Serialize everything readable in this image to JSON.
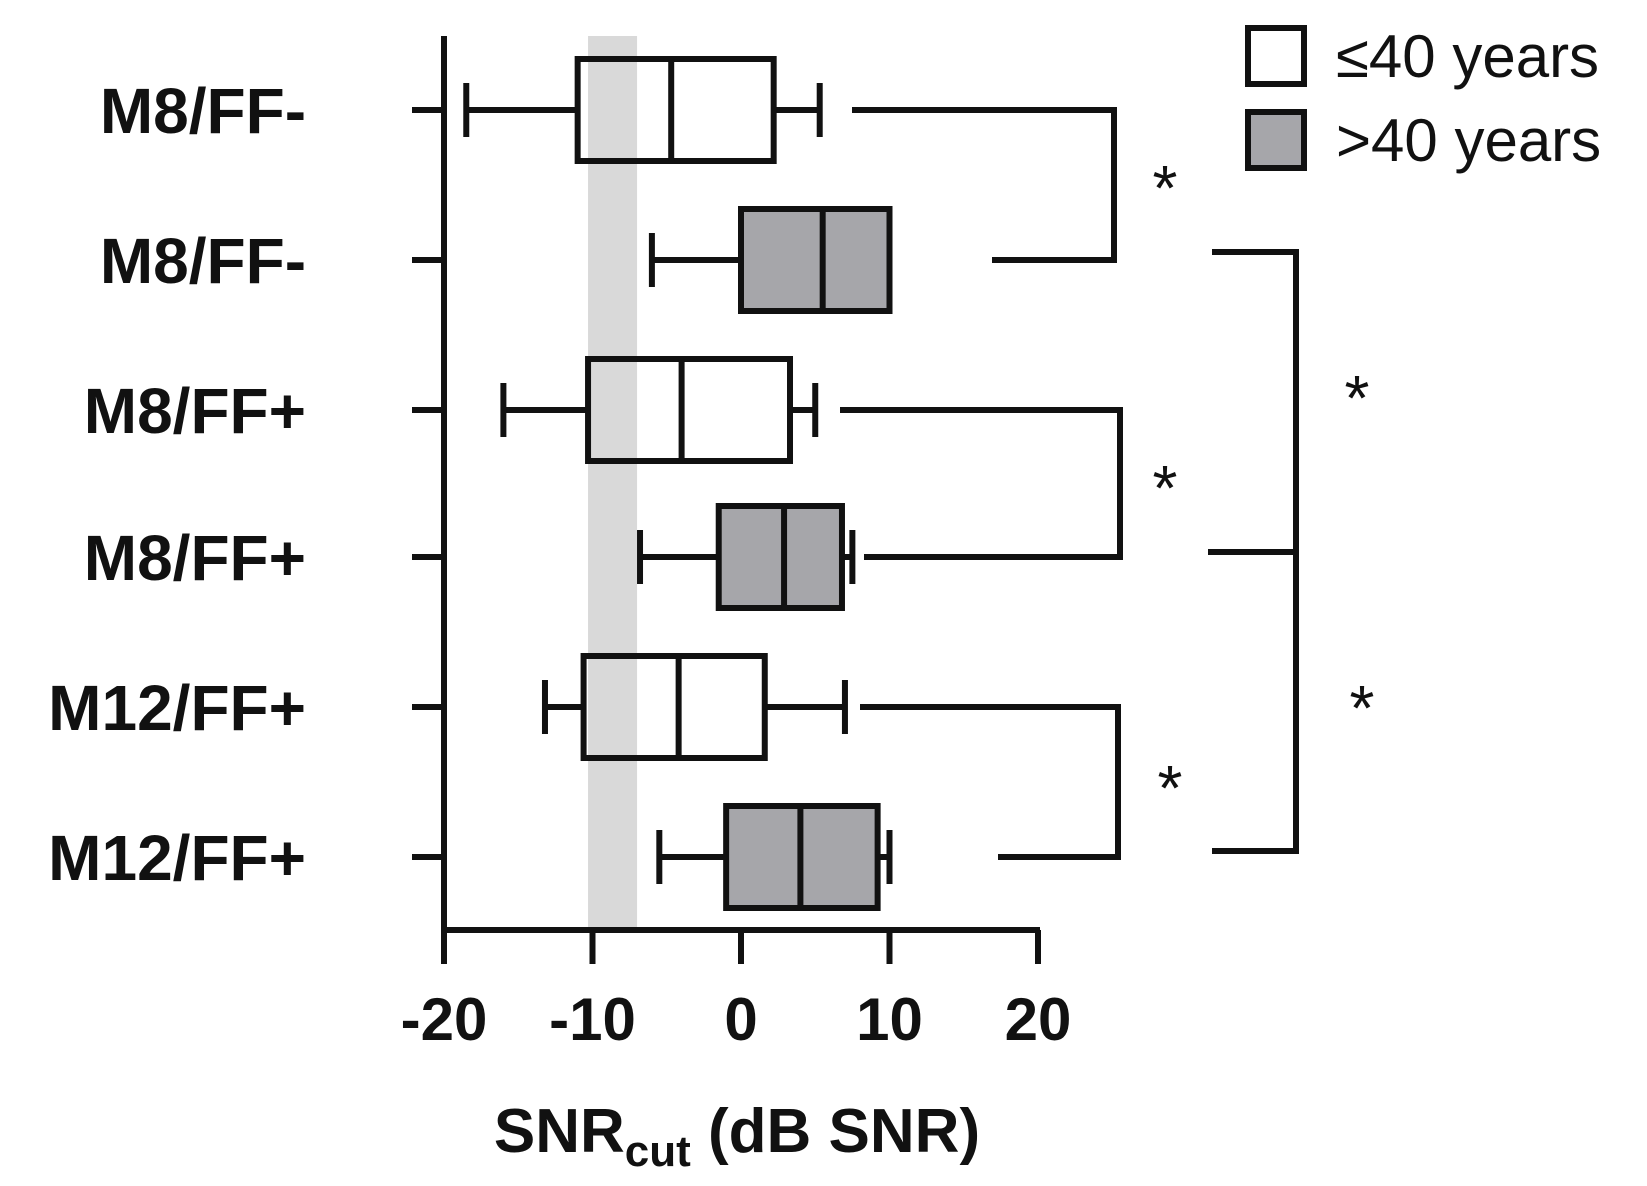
{
  "chart_data": {
    "type": "boxplot",
    "orientation": "horizontal",
    "categories": [
      "M8/FF-",
      "M8/FF-",
      "M8/FF+",
      "M8/FF+",
      "M12/FF+",
      "M12/FF+"
    ],
    "groups": [
      {
        "name": "≤40 years",
        "color": "#ffffff"
      },
      {
        "name": ">40 years",
        "color": "#a6a6aa"
      }
    ],
    "boxes": [
      {
        "category": "M8/FF-",
        "group": 0,
        "whisker_low": -18.5,
        "q1": -11,
        "median": -4.7,
        "q3": 2.2,
        "whisker_high": 5.3
      },
      {
        "category": "M8/FF-",
        "group": 1,
        "whisker_low": -6,
        "q1": 0,
        "median": 5.5,
        "q3": 10,
        "whisker_high": 10
      },
      {
        "category": "M8/FF+",
        "group": 0,
        "whisker_low": -16,
        "q1": -10.3,
        "median": -4,
        "q3": 3.3,
        "whisker_high": 5
      },
      {
        "category": "M8/FF+",
        "group": 1,
        "whisker_low": -6.8,
        "q1": -1.5,
        "median": 2.9,
        "q3": 6.8,
        "whisker_high": 7.5
      },
      {
        "category": "M12/FF+",
        "group": 0,
        "whisker_low": -13.2,
        "q1": -10.6,
        "median": -4.2,
        "q3": 1.6,
        "whisker_high": 7
      },
      {
        "category": "M12/FF+",
        "group": 1,
        "whisker_low": -5.5,
        "q1": -1,
        "median": 4,
        "q3": 9.2,
        "whisker_high": 10
      }
    ],
    "shaded_band": {
      "from": -10.3,
      "to": -7.0,
      "color": "#d9d9d9"
    },
    "xlim": [
      -20,
      20
    ],
    "xticks": [
      -20,
      -10,
      0,
      10,
      20
    ],
    "xtick_labels": [
      "-20",
      "-10",
      "0",
      "10",
      "20"
    ],
    "xlabel": "SNR",
    "xlabel_subscript": "cut",
    "xlabel_suffix": " (dB SNR)",
    "legend_placement": "top-right",
    "grid": false,
    "significance": [
      {
        "rows": [
          0,
          1
        ],
        "label": "*"
      },
      {
        "rows": [
          2,
          3
        ],
        "label": "*"
      },
      {
        "rows": [
          4,
          5
        ],
        "label": "*"
      },
      {
        "rows": [
          1,
          3
        ],
        "label": "*"
      },
      {
        "rows": [
          3,
          5
        ],
        "label": "*"
      }
    ]
  }
}
